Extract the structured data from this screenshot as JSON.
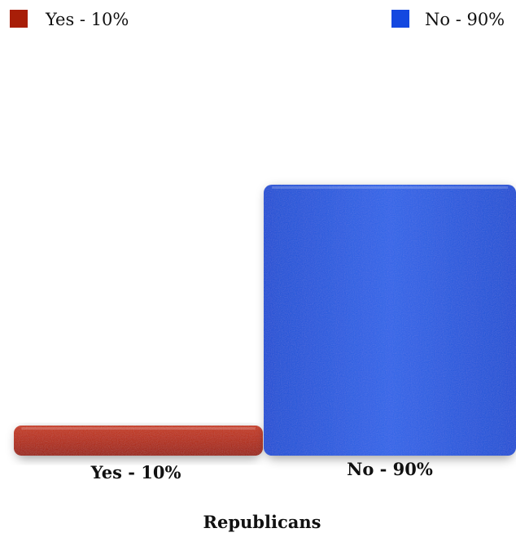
{
  "chart_data": {
    "type": "bar",
    "title": "",
    "xlabel": "Republicans",
    "ylabel": "",
    "ylim": [
      0,
      100
    ],
    "grid": false,
    "legend_placement": "top",
    "categories": [
      "Yes - 10%",
      "No - 90%"
    ],
    "values": [
      10,
      90
    ],
    "colors": [
      "#b52a10",
      "#1f57e0"
    ],
    "legend": [
      {
        "label": "Yes - 10%",
        "color": "#a81e08"
      },
      {
        "label": "No - 90%",
        "color": "#1448e0"
      }
    ]
  }
}
